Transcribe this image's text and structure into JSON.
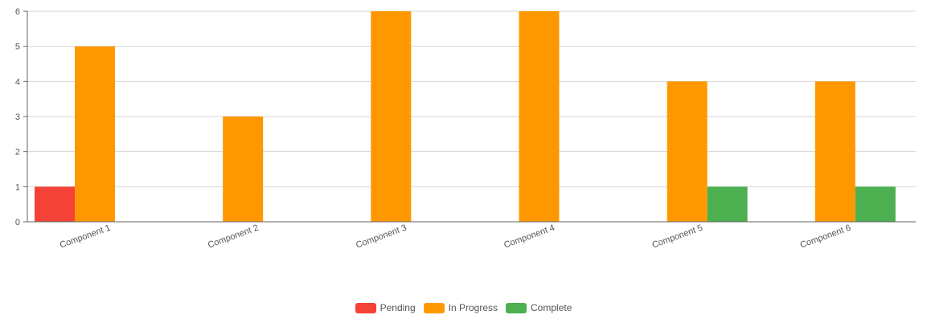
{
  "chart_data": {
    "type": "bar",
    "categories": [
      "Component 1",
      "Component 2",
      "Component 3",
      "Component 4",
      "Component 5",
      "Component 6"
    ],
    "series": [
      {
        "name": "Pending",
        "color": "#F44336",
        "values": [
          1,
          0,
          0,
          0,
          0,
          0
        ]
      },
      {
        "name": "In Progress",
        "color": "#FF9800",
        "values": [
          5,
          3,
          6,
          6,
          4,
          4
        ]
      },
      {
        "name": "Complete",
        "color": "#4CAF50",
        "values": [
          0,
          0,
          0,
          0,
          1,
          1
        ]
      }
    ],
    "yticks": [
      0,
      1,
      2,
      3,
      4,
      5,
      6
    ],
    "ylim": [
      0,
      6
    ],
    "grid": true,
    "legend_position": "bottom-center",
    "title": "",
    "xlabel": "",
    "ylabel": ""
  }
}
